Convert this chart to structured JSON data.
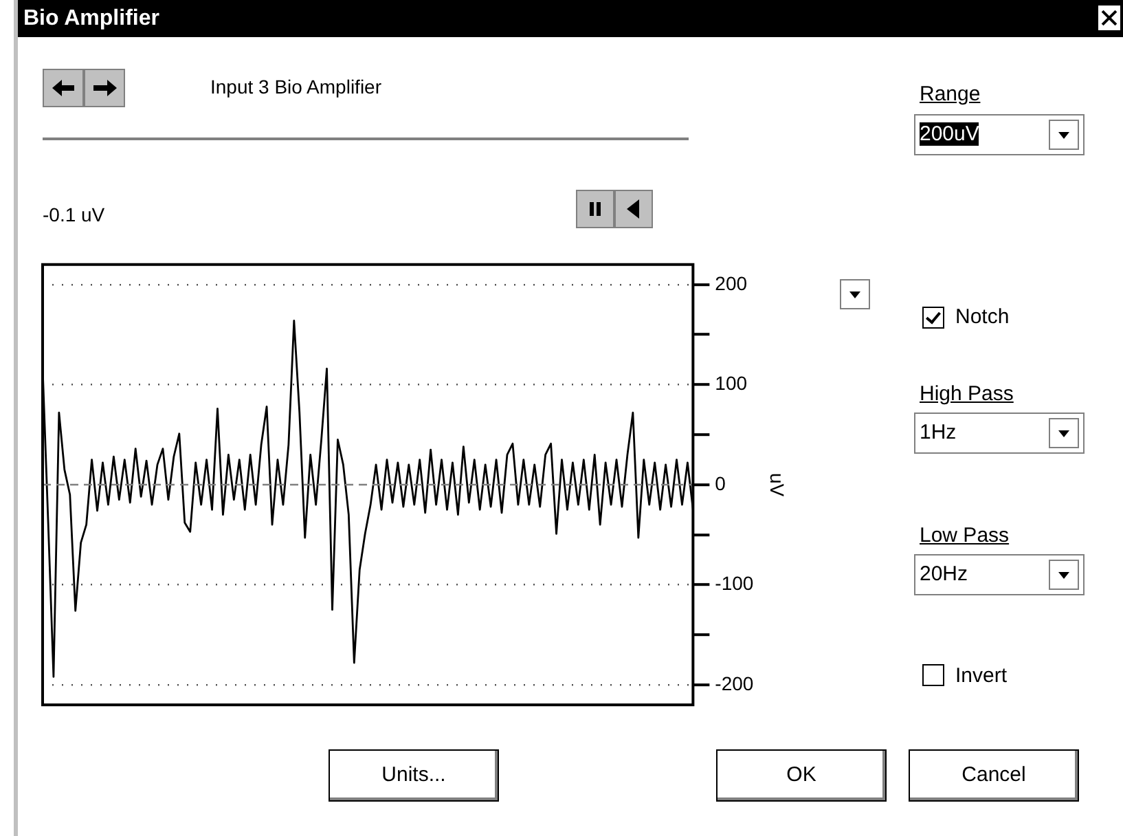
{
  "chart_data": {
    "type": "line",
    "title": "Bio Amplifier",
    "subtitle": "Input 3 Bio Amplifier",
    "ylabel": "uV",
    "annotations": [
      "-0.1 uV",
      "Range",
      "200uV",
      "Notch",
      "High Pass",
      "1Hz",
      "Low Pass",
      "20Hz",
      "Invert",
      "Units...",
      "OK",
      "Cancel"
    ],
    "categories": [
      null,
      null,
      null,
      null,
      null,
      null,
      null,
      null,
      null,
      null,
      null,
      null,
      null,
      null,
      null,
      null,
      null,
      null,
      null,
      null,
      null,
      null,
      null,
      null,
      null,
      null,
      null,
      null,
      null,
      null,
      null,
      null,
      null,
      null,
      null,
      null,
      null,
      null,
      null,
      null,
      null,
      null,
      null,
      null,
      null,
      null,
      null,
      null,
      null,
      null,
      null,
      null,
      null,
      null,
      null,
      null,
      null,
      null,
      null,
      null,
      null,
      null,
      null,
      null,
      null,
      null,
      null,
      null,
      null,
      null,
      null,
      null,
      null,
      null,
      null,
      null,
      null,
      null,
      null,
      null,
      null,
      null,
      null,
      null,
      null,
      null,
      null,
      null,
      null,
      null,
      null,
      null,
      null,
      null,
      null,
      null,
      null,
      null,
      null,
      null,
      null,
      null,
      null,
      null,
      null,
      null,
      null,
      null,
      null,
      null,
      null,
      null,
      null,
      null,
      null,
      null,
      null,
      null,
      null,
      null
    ],
    "series": [
      {
        "color": "#000000",
        "values": [
          117,
          -35,
          -192,
          72,
          15,
          -10,
          -126,
          -58,
          -40,
          25,
          -26,
          22,
          -20,
          28,
          -15,
          25,
          -18,
          36,
          -12,
          24,
          -20,
          20,
          36,
          -15,
          28,
          51,
          -38,
          -47,
          22,
          -20,
          25,
          -25,
          76,
          -30,
          30,
          -15,
          25,
          -25,
          30,
          -20,
          40,
          78,
          -40,
          25,
          -20,
          40,
          164,
          72,
          -53,
          30,
          -20,
          45,
          116,
          -125,
          45,
          20,
          -30,
          -178,
          -85,
          -49,
          -20,
          20,
          -25,
          25,
          -18,
          22,
          -22,
          20,
          -20,
          25,
          -28,
          35,
          -20,
          25,
          -25,
          22,
          -30,
          38,
          -18,
          25,
          -25,
          20,
          -22,
          25,
          -28,
          30,
          41,
          -20,
          25,
          -20,
          20,
          -22,
          30,
          41,
          -49,
          25,
          -25,
          22,
          -20,
          25,
          -25,
          30,
          -40,
          22,
          -20,
          25,
          -22,
          30,
          72,
          -53,
          25,
          -20,
          22,
          -25,
          20,
          -22,
          25,
          -20,
          22,
          -25
        ]
      }
    ],
    "ylim": [
      -220,
      220
    ],
    "yticks": [
      200,
      {
        "value": 150,
        "label": null
      },
      100,
      {
        "value": 50,
        "label": null
      },
      0,
      {
        "value": -50,
        "label": null
      },
      -100,
      {
        "value": -150,
        "label": null
      },
      -200
    ],
    "ref_lines": [
      {
        "axis": "y",
        "value": 0,
        "color": "#808080",
        "line_style": "dashed"
      }
    ],
    "grid": "y",
    "line_style": "solid",
    "marker": "none",
    "legend": false
  }
}
